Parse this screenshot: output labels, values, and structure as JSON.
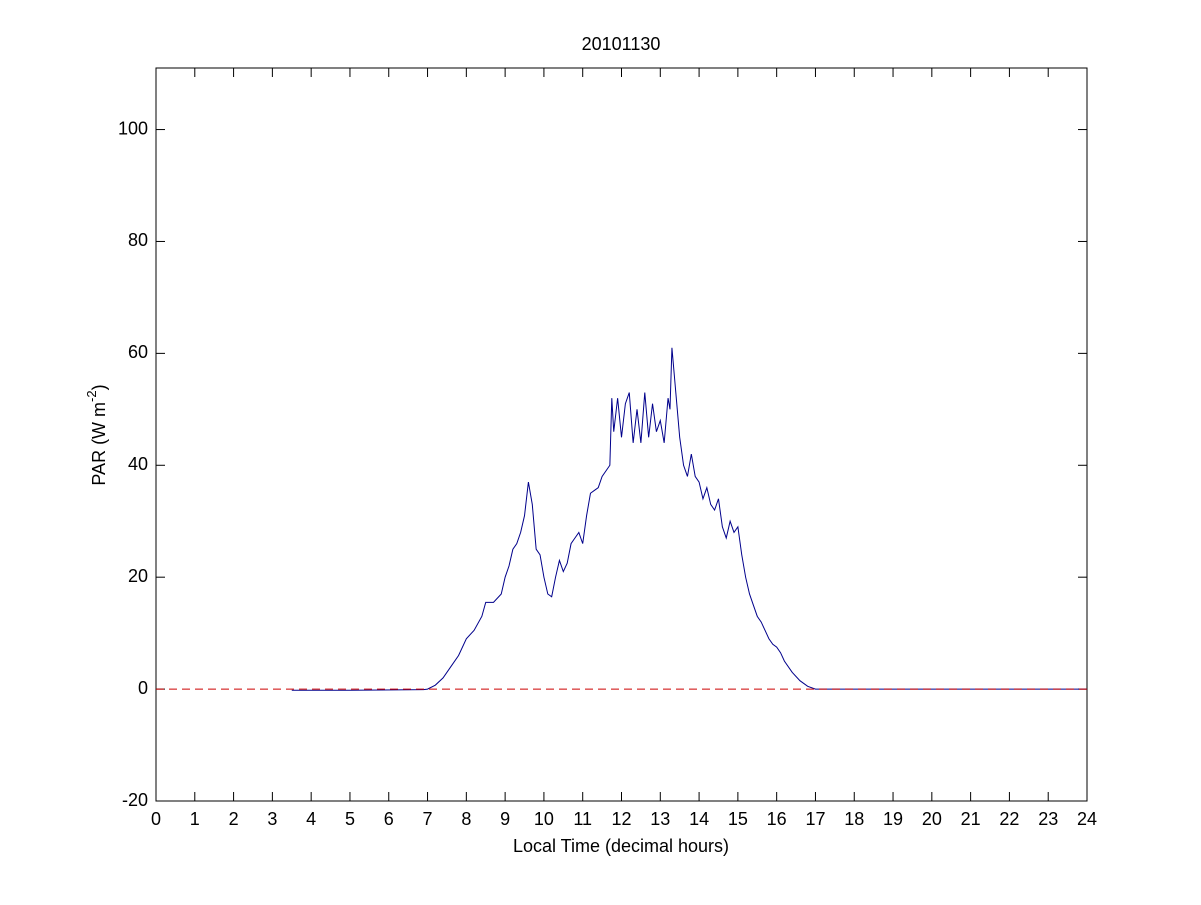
{
  "chart_data": {
    "type": "line",
    "title": "20101130",
    "xlabel": "Local Time (decimal hours)",
    "ylabel": [
      "PAR (W m",
      "-2",
      ")"
    ],
    "xlim": [
      0,
      24
    ],
    "ylim": [
      -20,
      111
    ],
    "xticks": [
      0,
      1,
      2,
      3,
      4,
      5,
      6,
      7,
      8,
      9,
      10,
      11,
      12,
      13,
      14,
      15,
      16,
      17,
      18,
      19,
      20,
      21,
      22,
      23,
      24
    ],
    "yticks": [
      -20,
      0,
      20,
      40,
      60,
      80,
      100
    ],
    "reference_line": {
      "value": 0,
      "color": "#cc0000",
      "dashed": true
    },
    "series": [
      {
        "color": "#00008b",
        "x": [
          3.5,
          5,
          6.9,
          7.0,
          7.2,
          7.4,
          7.6,
          7.8,
          8.0,
          8.2,
          8.4,
          8.5,
          8.7,
          8.9,
          9.0,
          9.1,
          9.2,
          9.3,
          9.4,
          9.5,
          9.6,
          9.7,
          9.8,
          9.9,
          10.0,
          10.1,
          10.2,
          10.3,
          10.4,
          10.5,
          10.6,
          10.7,
          10.8,
          10.9,
          11.0,
          11.1,
          11.2,
          11.3,
          11.4,
          11.5,
          11.6,
          11.7,
          11.75,
          11.8,
          11.9,
          12.0,
          12.1,
          12.2,
          12.3,
          12.4,
          12.5,
          12.6,
          12.7,
          12.8,
          12.9,
          13.0,
          13.1,
          13.2,
          13.25,
          13.3,
          13.4,
          13.5,
          13.6,
          13.7,
          13.8,
          13.9,
          14.0,
          14.1,
          14.2,
          14.3,
          14.4,
          14.5,
          14.6,
          14.7,
          14.8,
          14.9,
          15.0,
          15.1,
          15.2,
          15.3,
          15.4,
          15.5,
          15.6,
          15.7,
          15.8,
          15.9,
          16.0,
          16.1,
          16.2,
          16.4,
          16.6,
          16.8,
          17.0,
          17.2,
          24
        ],
        "values": [
          -0.2,
          -0.2,
          -0.1,
          0,
          0.7,
          2,
          4,
          6,
          9,
          10.5,
          13,
          15.5,
          15.5,
          17,
          20,
          22,
          25,
          26,
          28,
          31,
          37,
          33,
          25,
          24,
          20,
          17,
          16.5,
          20,
          23,
          21,
          22.5,
          26,
          27,
          28,
          26,
          31,
          35,
          35.5,
          36,
          38,
          39,
          40,
          52,
          46,
          52,
          45,
          51,
          53,
          44,
          50,
          44,
          53,
          45,
          51,
          46,
          48,
          44,
          52,
          50,
          61,
          53,
          45,
          40,
          38,
          42,
          38,
          37,
          34,
          36,
          33,
          32,
          34,
          29,
          27,
          30,
          28,
          29,
          24,
          20,
          17,
          15,
          13,
          12,
          10.5,
          9,
          8,
          7.5,
          6.5,
          5,
          3,
          1.5,
          0.5,
          0,
          0,
          0
        ]
      }
    ]
  }
}
